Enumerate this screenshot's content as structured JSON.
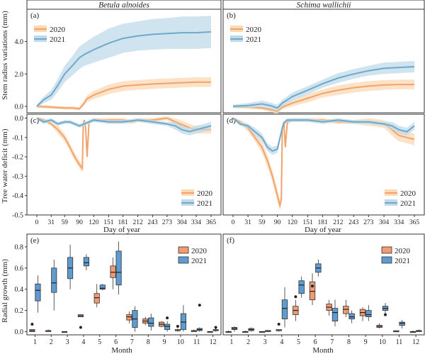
{
  "colors": {
    "y2020": "#f2a36b",
    "y2020_band": "#fbd9b4",
    "y2021": "#6fa8c9",
    "y2021_band": "#bfdbe9",
    "box2020": "#f29b72",
    "box2021": "#5f9bd0",
    "frame": "#333333"
  },
  "labels": {
    "species": [
      "Betula alnoides",
      "Schima wallichii"
    ],
    "y_top": "Stem radius variations (mm)",
    "y_mid": "Tree water deficit (mm)",
    "y_bottom": "Radial growth (mm)",
    "x_doy": "Day of year",
    "x_month": "Month"
  },
  "chart_data": [
    {
      "panel": "(a)",
      "type": "line",
      "species": "Betula alnoides",
      "ylabel": "Stem radius variations (mm)",
      "ylim": [
        -0.4,
        6.0
      ],
      "yticks": [
        "0.0",
        "2.0",
        "4.0"
      ],
      "legend": "top-left",
      "series": [
        {
          "name": "2020",
          "x": [
            1,
            31,
            59,
            75,
            90,
            100,
            105,
            120,
            151,
            181,
            212,
            243,
            273,
            304,
            334,
            365
          ],
          "y": [
            0.0,
            -0.05,
            -0.1,
            -0.1,
            -0.15,
            0.2,
            0.45,
            0.7,
            1.05,
            1.25,
            1.32,
            1.38,
            1.42,
            1.46,
            1.5,
            1.5
          ],
          "band": [
            0.1,
            0.1,
            0.1,
            0.1,
            0.1,
            0.15,
            0.2,
            0.25,
            0.3,
            0.3,
            0.3,
            0.3,
            0.3,
            0.3,
            0.3,
            0.3
          ]
        },
        {
          "name": "2021",
          "x": [
            1,
            15,
            31,
            45,
            59,
            75,
            90,
            100,
            120,
            151,
            181,
            212,
            243,
            273,
            304,
            334,
            365
          ],
          "y": [
            0.0,
            0.4,
            0.7,
            1.3,
            2.0,
            2.5,
            3.0,
            3.2,
            3.5,
            3.9,
            4.2,
            4.35,
            4.45,
            4.5,
            4.55,
            4.55,
            4.6
          ],
          "band": [
            0.1,
            0.2,
            0.3,
            0.4,
            0.5,
            0.6,
            0.7,
            0.7,
            0.8,
            0.9,
            0.9,
            0.9,
            0.95,
            0.95,
            1.0,
            1.0,
            1.0
          ]
        }
      ]
    },
    {
      "panel": "(b)",
      "type": "line",
      "species": "Schima wallichii",
      "ylim": [
        -0.4,
        6.0
      ],
      "legend": "top-left",
      "series": [
        {
          "name": "2020",
          "x": [
            1,
            31,
            59,
            75,
            90,
            100,
            120,
            151,
            181,
            212,
            243,
            273,
            304,
            334,
            365
          ],
          "y": [
            0.0,
            -0.05,
            -0.1,
            -0.2,
            -0.3,
            -0.05,
            0.2,
            0.5,
            0.8,
            1.0,
            1.15,
            1.25,
            1.32,
            1.35,
            1.35
          ],
          "band": [
            0.1,
            0.1,
            0.1,
            0.15,
            0.15,
            0.15,
            0.2,
            0.25,
            0.25,
            0.3,
            0.3,
            0.3,
            0.3,
            0.3,
            0.3
          ]
        },
        {
          "name": "2021",
          "x": [
            1,
            31,
            59,
            75,
            90,
            100,
            120,
            151,
            181,
            212,
            243,
            273,
            304,
            334,
            365
          ],
          "y": [
            0.0,
            0.05,
            0.15,
            0.05,
            -0.1,
            0.2,
            0.6,
            1.0,
            1.4,
            1.75,
            2.0,
            2.2,
            2.35,
            2.4,
            2.45
          ],
          "band": [
            0.1,
            0.15,
            0.2,
            0.2,
            0.2,
            0.2,
            0.25,
            0.25,
            0.25,
            0.3,
            0.3,
            0.3,
            0.35,
            0.35,
            0.35
          ]
        }
      ]
    },
    {
      "panel": "(c)",
      "type": "line",
      "species": "Betula alnoides",
      "ylabel": "Tree water deficit (mm)",
      "ylim": [
        -0.5,
        0.02
      ],
      "yticks": [
        "0.0",
        "-0.1",
        "-0.2",
        "-0.3",
        "-0.4",
        "-0.5"
      ],
      "legend": "bottom-right",
      "xlabel": "Day of year",
      "xticks": [
        "0",
        "31",
        "59",
        "90",
        "120",
        "151",
        "181",
        "212",
        "243",
        "273",
        "304",
        "334",
        "365"
      ],
      "series": [
        {
          "name": "2020",
          "x": [
            1,
            15,
            31,
            45,
            59,
            70,
            80,
            90,
            96,
            98,
            100,
            103,
            106,
            110,
            120,
            151,
            181,
            200,
            212,
            243,
            273,
            300,
            320,
            334,
            350,
            365
          ],
          "y": [
            0.0,
            -0.01,
            -0.03,
            -0.06,
            -0.1,
            -0.15,
            -0.2,
            -0.24,
            -0.26,
            -0.03,
            -0.01,
            -0.05,
            -0.2,
            -0.02,
            -0.01,
            -0.01,
            -0.01,
            -0.02,
            -0.01,
            -0.01,
            0.0,
            -0.03,
            -0.05,
            -0.06,
            -0.06,
            -0.06
          ],
          "band": [
            0.005,
            0.01,
            0.01,
            0.02,
            0.02,
            0.02,
            0.02,
            0.02,
            0.02,
            0.01,
            0.01,
            0.01,
            0.02,
            0.01,
            0.01,
            0.01,
            0.01,
            0.01,
            0.01,
            0.01,
            0.01,
            0.02,
            0.02,
            0.02,
            0.02,
            0.02
          ]
        },
        {
          "name": "2021",
          "x": [
            1,
            15,
            31,
            45,
            59,
            70,
            80,
            90,
            100,
            110,
            120,
            151,
            181,
            212,
            243,
            273,
            290,
            304,
            320,
            334,
            350,
            365
          ],
          "y": [
            0.0,
            -0.02,
            -0.01,
            -0.03,
            -0.02,
            -0.02,
            -0.03,
            -0.04,
            -0.03,
            -0.02,
            -0.01,
            -0.02,
            -0.02,
            -0.01,
            -0.02,
            -0.03,
            -0.04,
            -0.06,
            -0.07,
            -0.06,
            -0.05,
            -0.04
          ],
          "band": [
            0.005,
            0.01,
            0.01,
            0.01,
            0.01,
            0.01,
            0.01,
            0.01,
            0.01,
            0.01,
            0.01,
            0.01,
            0.01,
            0.01,
            0.01,
            0.01,
            0.02,
            0.02,
            0.02,
            0.02,
            0.02,
            0.02
          ]
        }
      ]
    },
    {
      "panel": "(d)",
      "type": "line",
      "species": "Schima wallichii",
      "ylim": [
        -0.5,
        0.02
      ],
      "legend": "bottom-right",
      "xlabel": "Day of year",
      "xticks": [
        "0",
        "31",
        "59",
        "90",
        "120",
        "151",
        "181",
        "212",
        "243",
        "273",
        "304",
        "334",
        "365"
      ],
      "series": [
        {
          "name": "2020",
          "x": [
            1,
            15,
            31,
            45,
            59,
            70,
            80,
            90,
            95,
            98,
            100,
            103,
            106,
            110,
            120,
            151,
            181,
            212,
            243,
            273,
            304,
            320,
            334,
            350,
            365
          ],
          "y": [
            0.0,
            -0.02,
            -0.05,
            -0.1,
            -0.15,
            -0.22,
            -0.3,
            -0.4,
            -0.45,
            -0.42,
            -0.05,
            -0.02,
            -0.15,
            -0.02,
            -0.01,
            -0.01,
            -0.01,
            -0.02,
            -0.02,
            -0.02,
            -0.03,
            -0.06,
            -0.09,
            -0.1,
            -0.11
          ],
          "band": [
            0.005,
            0.01,
            0.02,
            0.02,
            0.03,
            0.03,
            0.03,
            0.03,
            0.03,
            0.03,
            0.02,
            0.01,
            0.02,
            0.01,
            0.01,
            0.01,
            0.01,
            0.01,
            0.01,
            0.02,
            0.02,
            0.03,
            0.03,
            0.03,
            0.03
          ]
        },
        {
          "name": "2021",
          "x": [
            1,
            15,
            31,
            45,
            59,
            70,
            80,
            90,
            100,
            105,
            110,
            120,
            151,
            181,
            212,
            243,
            273,
            304,
            320,
            334,
            350,
            365
          ],
          "y": [
            0.0,
            -0.03,
            -0.04,
            -0.07,
            -0.1,
            -0.15,
            -0.17,
            -0.16,
            -0.05,
            -0.02,
            -0.01,
            -0.01,
            -0.01,
            -0.02,
            -0.01,
            -0.02,
            -0.02,
            -0.03,
            -0.04,
            -0.06,
            -0.07,
            -0.04
          ],
          "band": [
            0.005,
            0.01,
            0.01,
            0.02,
            0.02,
            0.02,
            0.02,
            0.02,
            0.01,
            0.01,
            0.01,
            0.01,
            0.01,
            0.01,
            0.01,
            0.01,
            0.01,
            0.01,
            0.02,
            0.02,
            0.02,
            0.02
          ]
        }
      ]
    },
    {
      "panel": "(e)",
      "type": "box",
      "species": "Betula alnoides",
      "ylabel": "Radial growth (mm)",
      "xlabel": "Month",
      "ylim": [
        -0.03,
        0.92
      ],
      "yticks": [
        "0.0",
        "0.2",
        "0.4",
        "0.6",
        "0.8"
      ],
      "legend": "top-right",
      "categories": [
        "1",
        "2",
        "3",
        "4",
        "5",
        "6",
        "7",
        "8",
        "9",
        "10",
        "11",
        "12"
      ],
      "series": [
        {
          "name": "2020",
          "boxes": [
            [
              0.0,
              0.0,
              0.01,
              0.02,
              0.02
            ],
            [
              0.0,
              0.0,
              0.01,
              0.01,
              0.02
            ],
            [
              0.0,
              0.0,
              0.0,
              0.0,
              0.0
            ],
            [
              0.14,
              0.14,
              0.15,
              0.16,
              0.16
            ],
            [
              0.23,
              0.27,
              0.32,
              0.36,
              0.45
            ],
            [
              0.4,
              0.51,
              0.56,
              0.62,
              0.7
            ],
            [
              0.08,
              0.11,
              0.14,
              0.16,
              0.19
            ],
            [
              0.06,
              0.08,
              0.1,
              0.12,
              0.14
            ],
            [
              0.04,
              0.05,
              0.07,
              0.09,
              0.1
            ],
            [
              0.0,
              0.01,
              0.01,
              0.02,
              0.03
            ],
            [
              0.0,
              0.0,
              0.01,
              0.01,
              0.02
            ],
            [
              0.0,
              0.0,
              0.0,
              0.0,
              0.0
            ]
          ],
          "outliers": [
            [
              1,
              0.07
            ],
            [
              4,
              0.04
            ],
            [
              10,
              0.05
            ]
          ]
        },
        {
          "name": "2021",
          "boxes": [
            [
              0.18,
              0.29,
              0.39,
              0.45,
              0.53
            ],
            [
              0.2,
              0.37,
              0.46,
              0.6,
              0.68
            ],
            [
              0.4,
              0.5,
              0.6,
              0.7,
              0.82
            ],
            [
              0.58,
              0.62,
              0.65,
              0.7,
              0.73
            ],
            [
              0.39,
              0.4,
              0.41,
              0.44,
              0.45
            ],
            [
              0.35,
              0.44,
              0.56,
              0.76,
              0.85
            ],
            [
              0.0,
              0.04,
              0.12,
              0.2,
              0.24
            ],
            [
              0.01,
              0.05,
              0.08,
              0.13,
              0.17
            ],
            [
              0.0,
              0.02,
              0.05,
              0.07,
              0.1
            ],
            [
              0.0,
              0.02,
              0.09,
              0.17,
              0.25
            ],
            [
              0.0,
              0.01,
              0.02,
              0.03,
              0.04
            ],
            [
              0.0,
              0.01,
              0.01,
              0.02,
              0.03
            ]
          ],
          "outliers": [
            [
              9,
              0.13
            ],
            [
              11,
              0.25
            ],
            [
              12,
              0.04
            ]
          ]
        }
      ]
    },
    {
      "panel": "(f)",
      "type": "box",
      "species": "Schima wallichii",
      "xlabel": "Month",
      "ylim": [
        -0.03,
        0.92
      ],
      "legend": "top-right",
      "categories": [
        "1",
        "2",
        "3",
        "4",
        "5",
        "6",
        "7",
        "8",
        "9",
        "10",
        "11",
        "12"
      ],
      "series": [
        {
          "name": "2020",
          "boxes": [
            [
              0.0,
              0.0,
              0.0,
              0.0,
              0.01
            ],
            [
              0.0,
              0.0,
              0.0,
              0.0,
              0.01
            ],
            [
              0.0,
              0.0,
              0.0,
              0.0,
              0.0
            ],
            [
              0.0,
              0.01,
              0.01,
              0.02,
              0.02
            ],
            [
              0.1,
              0.16,
              0.2,
              0.24,
              0.3
            ],
            [
              0.25,
              0.3,
              0.38,
              0.47,
              0.55
            ],
            [
              0.15,
              0.2,
              0.23,
              0.26,
              0.3
            ],
            [
              0.14,
              0.17,
              0.21,
              0.24,
              0.3
            ],
            [
              0.1,
              0.15,
              0.18,
              0.21,
              0.23
            ],
            [
              0.03,
              0.04,
              0.05,
              0.06,
              0.08
            ],
            [
              0.0,
              0.0,
              0.0,
              0.01,
              0.01
            ],
            [
              0.0,
              0.0,
              0.0,
              0.0,
              0.01
            ]
          ],
          "outliers": [
            [
              4,
              0.07
            ],
            [
              5,
              0.33
            ],
            [
              6,
              0.43
            ]
          ]
        },
        {
          "name": "2021",
          "boxes": [
            [
              0.0,
              0.02,
              0.03,
              0.04,
              0.05
            ],
            [
              0.0,
              0.01,
              0.02,
              0.03,
              0.04
            ],
            [
              0.0,
              0.0,
              0.01,
              0.01,
              0.01
            ],
            [
              0.04,
              0.12,
              0.22,
              0.3,
              0.42
            ],
            [
              0.32,
              0.36,
              0.44,
              0.48,
              0.52
            ],
            [
              0.52,
              0.56,
              0.6,
              0.64,
              0.68
            ],
            [
              0.05,
              0.1,
              0.18,
              0.22,
              0.3
            ],
            [
              0.08,
              0.12,
              0.14,
              0.17,
              0.2
            ],
            [
              0.1,
              0.14,
              0.16,
              0.2,
              0.25
            ],
            [
              0.17,
              0.2,
              0.22,
              0.24,
              0.27
            ],
            [
              0.03,
              0.06,
              0.08,
              0.09,
              0.11
            ],
            [
              0.0,
              0.0,
              0.01,
              0.01,
              0.02
            ]
          ],
          "outliers": [
            [
              10,
              0.16
            ]
          ]
        }
      ]
    }
  ]
}
